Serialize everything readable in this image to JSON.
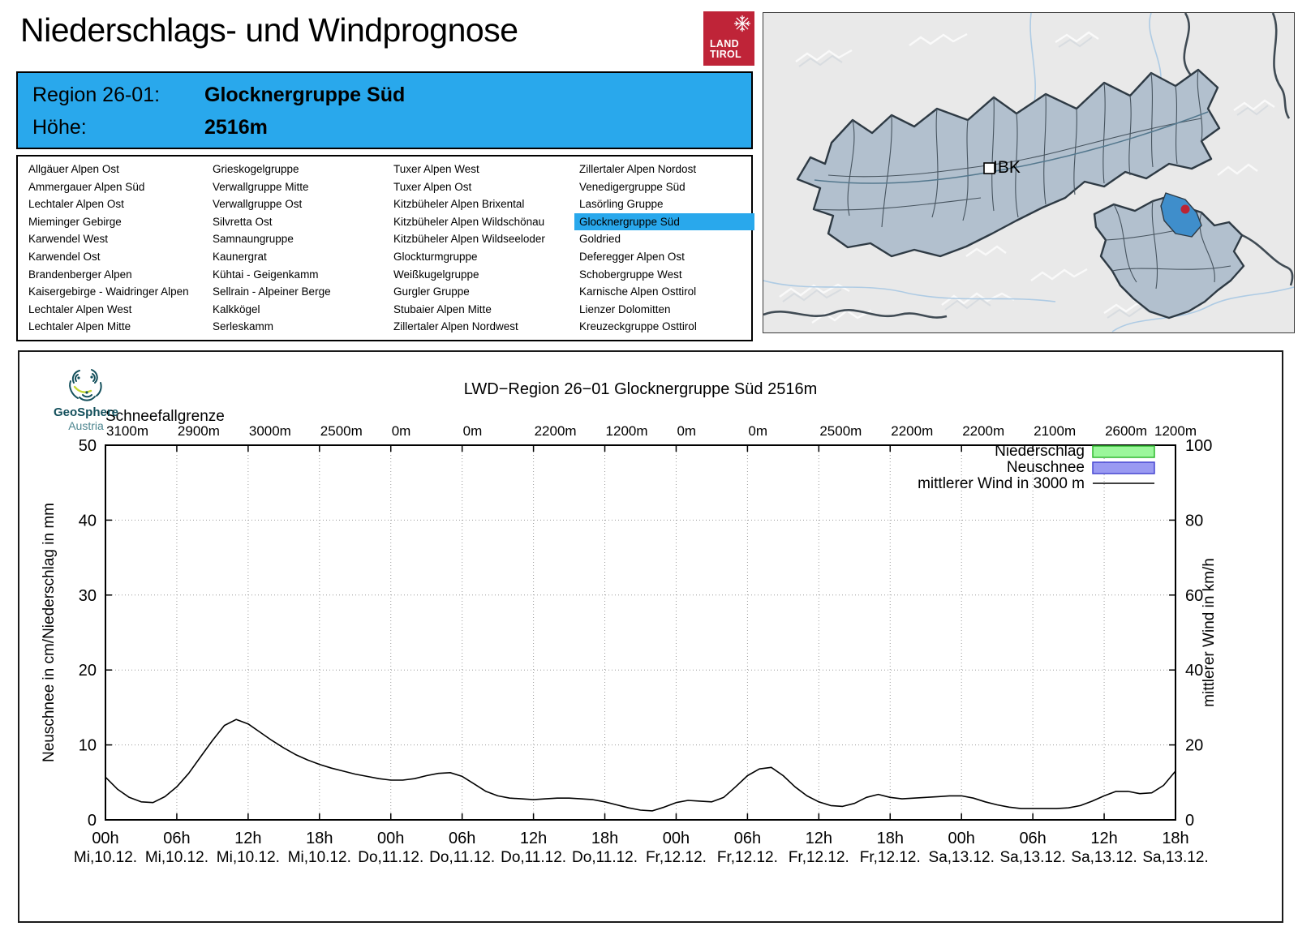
{
  "title": "Niederschlags- und Windprognose",
  "land_tirol_logo": {
    "line1": "LAND",
    "line2": "TIROL",
    "background": "#bf2438"
  },
  "geosphere_logo": {
    "name": "GeoSphere",
    "country": "Austria",
    "brand_color": "#14505c",
    "accent_color": "#c5d631"
  },
  "header": {
    "region_label": "Region 26-01:",
    "region_value": "Glocknergruppe Süd",
    "altitude_label": "Höhe:",
    "altitude_value": "2516m",
    "accent_color": "#29a8ec"
  },
  "region_list": {
    "selected": "Glocknergruppe Süd",
    "columns": [
      [
        "Allgäuer Alpen Ost",
        "Ammergauer Alpen Süd",
        "Lechtaler Alpen Ost",
        "Mieminger Gebirge",
        "Karwendel West",
        "Karwendel Ost",
        "Brandenberger Alpen",
        "Kaisergebirge - Waidringer Alpen",
        "Lechtaler Alpen West",
        "Lechtaler Alpen Mitte"
      ],
      [
        "Grieskogelgruppe",
        "Verwallgruppe Mitte",
        "Verwallgruppe Ost",
        "Silvretta Ost",
        "Samnaungruppe",
        "Kaunergrat",
        "Kühtai - Geigenkamm",
        "Sellrain - Alpeiner Berge",
        "Kalkkögel",
        "Serleskamm"
      ],
      [
        "Tuxer Alpen West",
        "Tuxer Alpen Ost",
        "Kitzbüheler Alpen Brixental",
        "Kitzbüheler Alpen Wildschönau",
        "Kitzbüheler Alpen Wildseeloder",
        "Glockturmgruppe",
        "Weißkugelgruppe",
        "Gurgler Gruppe",
        "Stubaier Alpen Mitte",
        "Zillertaler Alpen Nordwest"
      ],
      [
        "Zillertaler Alpen Nordost",
        "Venedigergruppe Süd",
        "Lasörling Gruppe",
        "Glocknergruppe Süd",
        "Goldried",
        "Deferegger Alpen Ost",
        "Schobergruppe West",
        "Karnische Alpen Osttirol",
        "Lienzer Dolomitten",
        "Kreuzeckgruppe Osttirol"
      ]
    ]
  },
  "map": {
    "city_label": "IBK",
    "region_fill": "#b2c0ce",
    "region_border": "#2e3a44",
    "highlight_fill": "#3f8ecb",
    "marker_color": "#bb2433",
    "background": "#e9e9e9"
  },
  "chart_data": {
    "type": "line",
    "title": "LWD−Region 26−01 Glocknergruppe Süd 2516m",
    "snowline_label": "Schneefallgrenze",
    "snowline_values": [
      "3100m",
      "2900m",
      "3000m",
      "2500m",
      "0m",
      "0m",
      "2200m",
      "1200m",
      "0m",
      "0m",
      "2500m",
      "2200m",
      "2200m",
      "2100m",
      "2600m",
      "1200m"
    ],
    "x_tick_hours": [
      "00h",
      "06h",
      "12h",
      "18h",
      "00h",
      "06h",
      "12h",
      "18h",
      "00h",
      "06h",
      "12h",
      "18h",
      "00h",
      "06h",
      "12h",
      "18h"
    ],
    "x_tick_dates": [
      "Mi,10.12.",
      "Mi,10.12.",
      "Mi,10.12.",
      "Mi,10.12.",
      "Do,11.12.",
      "Do,11.12.",
      "Do,11.12.",
      "Do,11.12.",
      "Fr,12.12.",
      "Fr,12.12.",
      "Fr,12.12.",
      "Fr,12.12.",
      "Sa,13.12.",
      "Sa,13.12.",
      "Sa,13.12.",
      "Sa,13.12."
    ],
    "x_range_hours": [
      0,
      90
    ],
    "ylabel_left": "Neuschnee in cm/Niederschlag in mm",
    "ylim_left": [
      0,
      50
    ],
    "yticks_left": [
      0,
      10,
      20,
      30,
      40,
      50
    ],
    "ylabel_right": "mittlerer Wind in km/h",
    "ylim_right": [
      0,
      100
    ],
    "yticks_right": [
      0,
      20,
      40,
      60,
      80,
      100
    ],
    "grid": "dotted",
    "legend_position": "top-right-inside",
    "legend": [
      {
        "label": "Niederschlag",
        "type": "box",
        "fill": "#9bf79b",
        "stroke": "#2eb82e"
      },
      {
        "label": "Neuschnee",
        "type": "box",
        "fill": "#9a9af2",
        "stroke": "#4747d1"
      },
      {
        "label": "mittlerer Wind in 3000 m",
        "type": "line",
        "stroke": "#000000"
      }
    ],
    "series": [
      {
        "name": "Niederschlag",
        "axis": "left",
        "unit": "mm",
        "values": [],
        "note": "no precipitation bars visible (0 mm over whole period)"
      },
      {
        "name": "Neuschnee",
        "axis": "left",
        "unit": "cm",
        "values": [],
        "note": "no new-snow bars visible (0 cm over whole period)"
      },
      {
        "name": "mittlerer Wind in 3000 m",
        "axis": "right",
        "unit": "km/h",
        "x_start_hour": 0,
        "x_step_hours": 1,
        "values_kmh": [
          11.4,
          8.2,
          6.0,
          4.8,
          4.6,
          6.2,
          8.8,
          12.4,
          16.8,
          21.2,
          25.2,
          26.8,
          25.6,
          23.4,
          21.2,
          19.2,
          17.4,
          16.0,
          14.8,
          13.8,
          13.0,
          12.2,
          11.6,
          11.0,
          10.6,
          10.6,
          11.0,
          11.8,
          12.4,
          12.6,
          11.6,
          9.6,
          7.6,
          6.4,
          5.8,
          5.6,
          5.4,
          5.6,
          5.8,
          5.8,
          5.6,
          5.4,
          4.8,
          4.0,
          3.2,
          2.6,
          2.4,
          3.4,
          4.6,
          5.2,
          5.0,
          4.8,
          6.0,
          8.8,
          11.8,
          13.6,
          14.0,
          11.8,
          8.8,
          6.4,
          4.8,
          3.8,
          3.6,
          4.4,
          6.0,
          6.8,
          6.0,
          5.6,
          5.8,
          6.0,
          6.2,
          6.4,
          6.4,
          5.8,
          4.8,
          4.0,
          3.4,
          3.0,
          3.0,
          3.0,
          3.0,
          3.2,
          3.8,
          5.0,
          6.4,
          7.6,
          7.6,
          7.0,
          7.2,
          9.2,
          13.0
        ]
      }
    ]
  }
}
